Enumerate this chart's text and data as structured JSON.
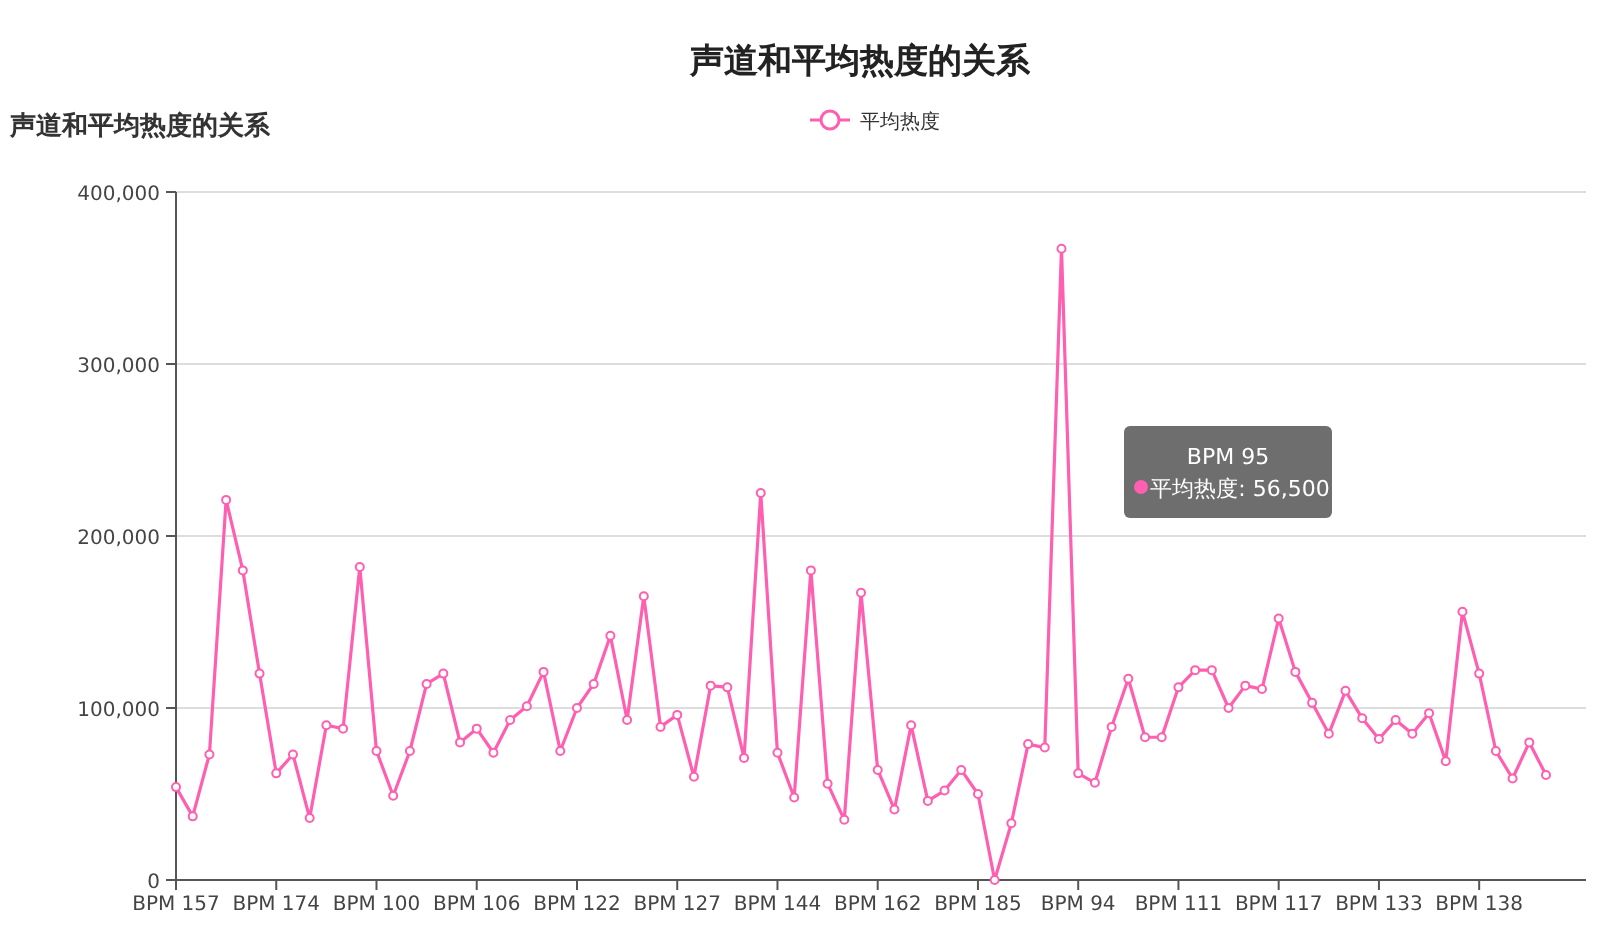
{
  "chart_data": {
    "type": "line",
    "title": "声道和平均热度的关系",
    "subtitle": "声道和平均热度的关系",
    "categories": [
      "BPM 157",
      null,
      null,
      null,
      null,
      null,
      "BPM 174",
      null,
      null,
      null,
      null,
      null,
      "BPM 100",
      null,
      null,
      null,
      null,
      null,
      "BPM 106",
      null,
      null,
      null,
      null,
      null,
      "BPM 122",
      null,
      null,
      null,
      null,
      null,
      "BPM 127",
      null,
      null,
      null,
      null,
      null,
      "BPM 144",
      null,
      null,
      null,
      null,
      null,
      "BPM 162",
      null,
      null,
      null,
      null,
      null,
      "BPM 185",
      null,
      null,
      null,
      null,
      null,
      "BPM 94",
      null,
      null,
      null,
      null,
      null,
      "BPM 111",
      null,
      null,
      null,
      null,
      null,
      "BPM 117",
      null,
      null,
      null,
      null,
      null,
      "BPM 133",
      null,
      null,
      null,
      null,
      null,
      "BPM 138",
      null,
      null,
      null,
      null
    ],
    "series": [
      {
        "name": "平均热度",
        "color": "#ff5fb0",
        "values": [
          54000,
          37000,
          73000,
          221000,
          180000,
          120000,
          62000,
          73000,
          36000,
          90000,
          88000,
          182000,
          75000,
          49000,
          75000,
          114000,
          120000,
          80000,
          88000,
          74000,
          93000,
          101000,
          121000,
          75000,
          100000,
          114000,
          142000,
          93000,
          165000,
          89000,
          96000,
          60000,
          113000,
          112000,
          71000,
          225000,
          74000,
          48000,
          180000,
          56000,
          35000,
          167000,
          64000,
          41000,
          90000,
          46000,
          52000,
          64000,
          50000,
          0,
          33000,
          79000,
          77000,
          367000,
          62000,
          56500,
          89000,
          117000,
          83000,
          83000,
          112000,
          122000,
          122000,
          100000,
          113000,
          111000,
          152000,
          121000,
          103000,
          85000,
          110000,
          94000,
          82000,
          93000,
          85000,
          97000,
          69000,
          156000,
          120000,
          75000,
          59000,
          80000,
          61000
        ]
      }
    ],
    "ylim": [
      0,
      400000
    ],
    "yticks": [
      {
        "value": 0,
        "label": "0"
      },
      {
        "value": 100000,
        "label": "100,000"
      },
      {
        "value": 200000,
        "label": "200,000"
      },
      {
        "value": 300000,
        "label": "300,000"
      },
      {
        "value": 400000,
        "label": "400,000"
      }
    ],
    "grid": "y",
    "legend": "top",
    "marker": "circle",
    "line_style": "solid",
    "annotations": [
      "BPM 95\n平均热度: 56,500"
    ]
  }
}
